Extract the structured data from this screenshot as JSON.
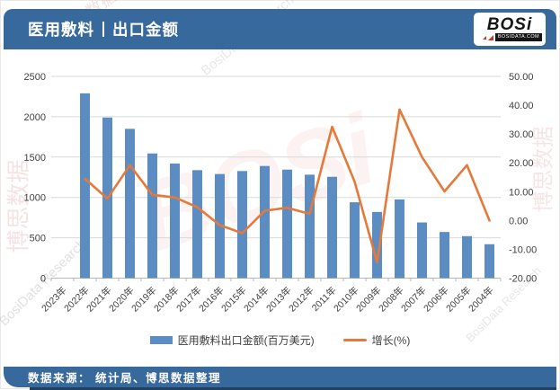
{
  "header": {
    "title": "医用敷料",
    "subtitle": "出口金额",
    "logo_text": "BOSi",
    "logo_domain": "BOSIDATA.COM"
  },
  "footer": {
    "source": "数据来源： 统计局、博思数据整理"
  },
  "watermarks": {
    "brand_cn": "博思数据",
    "brand_en": "BosiData Research",
    "logo": "BOSi"
  },
  "colors": {
    "banner": "#38699c",
    "banner_dark": "#1e4164",
    "bar": "#5b8dc3",
    "line": "#e5793a",
    "grid": "#d9d9d9",
    "axis_line": "#b7b7b7",
    "axis_text": "#404040"
  },
  "chart_data": {
    "type": "bar",
    "title": "医用敷料 | 出口金额",
    "categories": [
      "2023年",
      "2022年",
      "2021年",
      "2020年",
      "2019年",
      "2018年",
      "2017年",
      "2016年",
      "2015年",
      "2014年",
      "2013年",
      "2012年",
      "2011年",
      "2010年",
      "2009年",
      "2008年",
      "2007年",
      "2006年",
      "2005年",
      "2004年"
    ],
    "series": [
      {
        "name": "医用敷料出口金额(百万美元)",
        "type": "bar",
        "axis": "left",
        "values": [
          null,
          2290,
          1990,
          1850,
          1545,
          1420,
          1338,
          1290,
          1327,
          1390,
          1345,
          1282,
          1256,
          940,
          820,
          975,
          690,
          572,
          520,
          420
        ]
      },
      {
        "name": "增长(%)",
        "type": "line",
        "axis": "right",
        "values": [
          null,
          14.5,
          7.6,
          19.2,
          8.9,
          8.0,
          4.6,
          -1.6,
          -4.4,
          3.4,
          4.4,
          2.3,
          32.5,
          13.5,
          -14.5,
          38.5,
          22.0,
          10.1,
          19.2,
          0.0
        ]
      }
    ],
    "left_axis": {
      "min": 0,
      "max": 2500,
      "ticks": [
        "2500",
        "2000",
        "1500",
        "1000",
        "500",
        "0"
      ]
    },
    "right_axis": {
      "min": -20,
      "max": 50,
      "ticks": [
        "50.00",
        "40.00",
        "30.00",
        "20.00",
        "10.00",
        "0.00",
        "-10.00",
        "-20.00"
      ]
    },
    "grid": true,
    "legend_position": "bottom"
  }
}
